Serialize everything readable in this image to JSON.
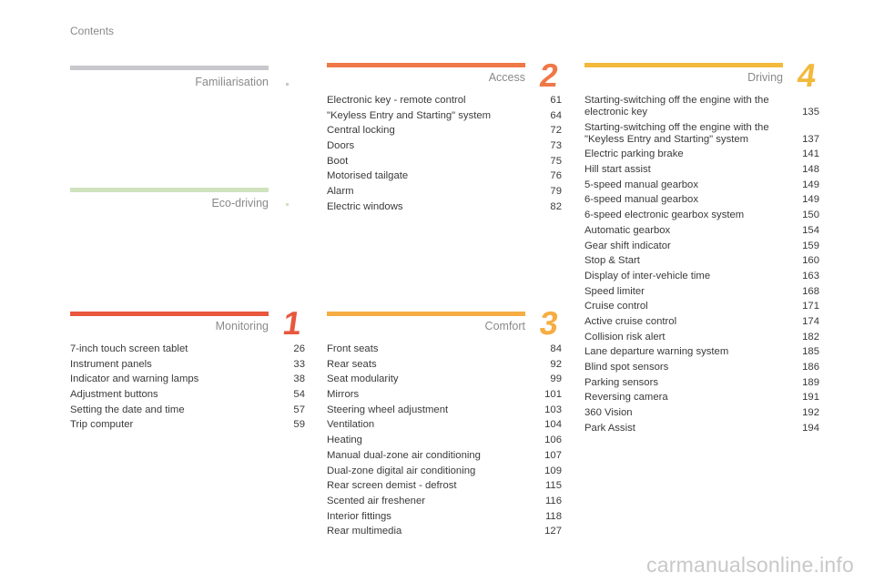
{
  "header": {
    "title": "Contents"
  },
  "colors": {
    "familiarisation": "#c8c8cc",
    "eco": "#cfe3bf",
    "monitoring": "#e8573e",
    "access": "#ef7848",
    "comfort": "#f5ad43",
    "driving": "#f2b93b"
  },
  "sections": {
    "familiarisation": {
      "title": "Familiarisation",
      "num": ""
    },
    "eco": {
      "title": "Eco-driving",
      "num": ""
    },
    "monitoring": {
      "title": "Monitoring",
      "num": "1",
      "items": [
        {
          "label": "7-inch touch screen tablet",
          "page": "26"
        },
        {
          "label": "Instrument panels",
          "page": "33"
        },
        {
          "label": "Indicator and warning lamps",
          "page": "38"
        },
        {
          "label": "Adjustment buttons",
          "page": "54"
        },
        {
          "label": "Setting the date and time",
          "page": "57"
        },
        {
          "label": "Trip computer",
          "page": "59"
        }
      ]
    },
    "access": {
      "title": "Access",
      "num": "2",
      "items": [
        {
          "label": "Electronic key - remote control",
          "page": "61"
        },
        {
          "label": "\"Keyless Entry and Starting\" system",
          "page": "64"
        },
        {
          "label": "Central locking",
          "page": "72"
        },
        {
          "label": "Doors",
          "page": "73"
        },
        {
          "label": "Boot",
          "page": "75"
        },
        {
          "label": "Motorised tailgate",
          "page": "76"
        },
        {
          "label": "Alarm",
          "page": "79"
        },
        {
          "label": "Electric windows",
          "page": "82"
        }
      ]
    },
    "comfort": {
      "title": "Comfort",
      "num": "3",
      "items": [
        {
          "label": "Front seats",
          "page": "84"
        },
        {
          "label": "Rear seats",
          "page": "92"
        },
        {
          "label": "Seat modularity",
          "page": "99"
        },
        {
          "label": "Mirrors",
          "page": "101"
        },
        {
          "label": "Steering wheel adjustment",
          "page": "103"
        },
        {
          "label": "Ventilation",
          "page": "104"
        },
        {
          "label": "Heating",
          "page": "106"
        },
        {
          "label": "Manual dual-zone air conditioning",
          "page": "107"
        },
        {
          "label": "Dual-zone digital air conditioning",
          "page": "109"
        },
        {
          "label": "Rear screen demist - defrost",
          "page": "115"
        },
        {
          "label": "Scented air freshener",
          "page": "116"
        },
        {
          "label": "Interior fittings",
          "page": "118"
        },
        {
          "label": "Rear multimedia",
          "page": "127"
        }
      ]
    },
    "driving": {
      "title": "Driving",
      "num": "4",
      "items": [
        {
          "label": "Starting-switching off the engine with the electronic key",
          "page": "135"
        },
        {
          "label": "Starting-switching off the engine with the \"Keyless Entry and Starting\" system",
          "page": "137"
        },
        {
          "label": "Electric parking brake",
          "page": "141"
        },
        {
          "label": "Hill start assist",
          "page": "148"
        },
        {
          "label": "5-speed manual gearbox",
          "page": "149"
        },
        {
          "label": "6-speed manual gearbox",
          "page": "149"
        },
        {
          "label": "6-speed electronic gearbox system",
          "page": "150"
        },
        {
          "label": "Automatic gearbox",
          "page": "154"
        },
        {
          "label": "Gear shift indicator",
          "page": "159"
        },
        {
          "label": "Stop & Start",
          "page": "160"
        },
        {
          "label": "Display of inter-vehicle time",
          "page": "163"
        },
        {
          "label": "Speed limiter",
          "page": "168"
        },
        {
          "label": "Cruise control",
          "page": "171"
        },
        {
          "label": "Active cruise control",
          "page": "174"
        },
        {
          "label": "Collision risk alert",
          "page": "182"
        },
        {
          "label": "Lane departure warning system",
          "page": "185"
        },
        {
          "label": "Blind spot sensors",
          "page": "186"
        },
        {
          "label": "Parking sensors",
          "page": "189"
        },
        {
          "label": "Reversing camera",
          "page": "191"
        },
        {
          "label": "360 Vision",
          "page": "192"
        },
        {
          "label": "Park Assist",
          "page": "194"
        }
      ]
    }
  },
  "footer": {
    "watermark": "carmanualsonline.info"
  }
}
